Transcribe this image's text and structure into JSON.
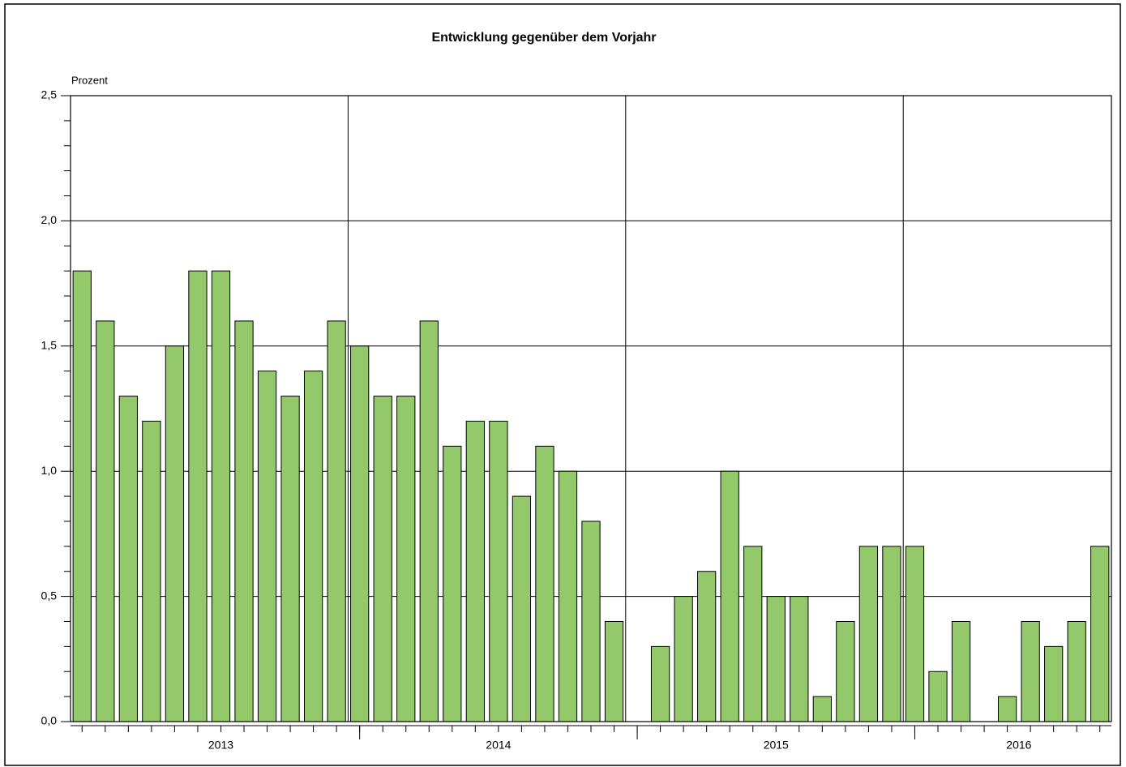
{
  "chart_data": {
    "type": "bar",
    "title": "Entwicklung gegenüber dem Vorjahr",
    "y_label": "Prozent",
    "categories": [
      null,
      null,
      null,
      null,
      null,
      null,
      null,
      null,
      null,
      null,
      null,
      null,
      null,
      null,
      null,
      null,
      null,
      null,
      null,
      null,
      null,
      null,
      null,
      null,
      null,
      null,
      null,
      null,
      null,
      null,
      null,
      null,
      null,
      null,
      null,
      null,
      null,
      null,
      null,
      null,
      null,
      null,
      null,
      null,
      null
    ],
    "groups": [
      {
        "label": "2013",
        "size": 12
      },
      {
        "label": "2014",
        "size": 12
      },
      {
        "label": "2015",
        "size": 12
      },
      {
        "label": "2016",
        "size": 9
      }
    ],
    "values": [
      1.8,
      1.6,
      1.3,
      1.2,
      1.5,
      1.8,
      1.8,
      1.6,
      1.4,
      1.3,
      1.4,
      1.6,
      1.5,
      1.3,
      1.3,
      1.6,
      1.1,
      1.2,
      1.2,
      0.9,
      1.1,
      1.0,
      0.8,
      0.4,
      0.0,
      0.3,
      0.5,
      0.6,
      1.0,
      0.7,
      0.5,
      0.5,
      0.1,
      0.4,
      0.7,
      0.7,
      0.7,
      0.2,
      0.4,
      0.0,
      0.1,
      0.4,
      0.3,
      0.4,
      0.7
    ],
    "color": "#93c96b",
    "ylim": [
      0,
      2.5
    ],
    "yticks": [
      {
        "value": 0,
        "label": "0,0"
      },
      {
        "value": 0.5,
        "label": "0,5"
      },
      {
        "value": 1,
        "label": "1,0"
      },
      {
        "value": 1.5,
        "label": "1,5"
      },
      {
        "value": 2,
        "label": "2,0"
      },
      {
        "value": 2.5,
        "label": "2,5"
      }
    ],
    "yminorticks": [
      0.1,
      0.2,
      0.3,
      0.4,
      0.6,
      0.7,
      0.8,
      0.9,
      1.1,
      1.2,
      1.3,
      1.4,
      1.6,
      1.7,
      1.8,
      1.9,
      2.1,
      2.2,
      2.3,
      2.4
    ],
    "grid": true
  }
}
